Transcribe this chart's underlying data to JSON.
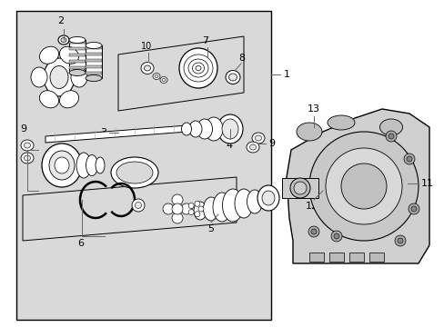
{
  "bg_color": "#ffffff",
  "main_bg": "#d8d8d8",
  "line_color": "#000000",
  "part_fill": "#ffffff",
  "part_stroke": "#000000",
  "fig_width": 4.89,
  "fig_height": 3.6,
  "dpi": 100
}
